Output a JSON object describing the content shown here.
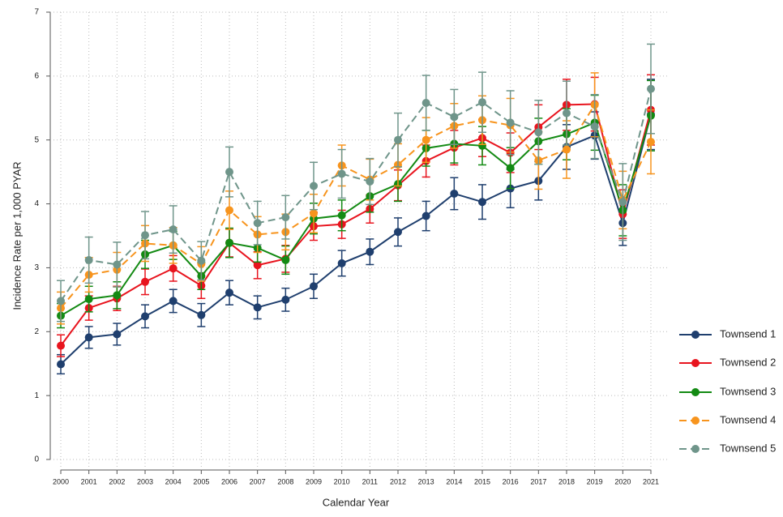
{
  "chart_data": {
    "type": "line",
    "x_label": "Calendar Year",
    "y_label": "Incidence Rate per 1,000 PYAR",
    "categories": [
      "2000",
      "2001",
      "2002",
      "2003",
      "2004",
      "2005",
      "2006",
      "2007",
      "2008",
      "2009",
      "2010",
      "2011",
      "2012",
      "2013",
      "2014",
      "2015",
      "2016",
      "2017",
      "2018",
      "2019",
      "2020",
      "2021"
    ],
    "ylim": [
      0,
      7
    ],
    "yticks": [
      0,
      1,
      2,
      3,
      4,
      5,
      6,
      7
    ],
    "grid": true,
    "legend": "right",
    "series": [
      {
        "name": "Townsend 1",
        "color": "#1f3f6e",
        "line_style": "solid",
        "values": [
          1.49,
          1.91,
          1.96,
          2.24,
          2.48,
          2.26,
          2.61,
          2.38,
          2.5,
          2.71,
          3.07,
          3.25,
          3.56,
          3.81,
          4.16,
          4.03,
          4.24,
          4.36,
          4.89,
          5.07,
          3.7,
          5.4
        ],
        "errors": [
          0.15,
          0.17,
          0.17,
          0.18,
          0.18,
          0.18,
          0.19,
          0.18,
          0.18,
          0.19,
          0.2,
          0.2,
          0.22,
          0.23,
          0.25,
          0.27,
          0.3,
          0.3,
          0.35,
          0.37,
          0.35,
          0.55
        ]
      },
      {
        "name": "Townsend 2",
        "color": "#e8141e",
        "line_style": "solid",
        "values": [
          1.78,
          2.37,
          2.52,
          2.78,
          2.99,
          2.72,
          3.39,
          3.04,
          3.14,
          3.65,
          3.68,
          3.92,
          4.29,
          4.67,
          4.88,
          5.03,
          4.8,
          5.2,
          5.55,
          5.56,
          3.84,
          5.47
        ],
        "errors": [
          0.17,
          0.19,
          0.19,
          0.2,
          0.2,
          0.2,
          0.22,
          0.21,
          0.21,
          0.22,
          0.22,
          0.22,
          0.24,
          0.25,
          0.27,
          0.29,
          0.31,
          0.35,
          0.4,
          0.42,
          0.38,
          0.55
        ]
      },
      {
        "name": "Townsend 3",
        "color": "#138a13",
        "line_style": "solid",
        "values": [
          2.25,
          2.51,
          2.57,
          3.21,
          3.35,
          2.87,
          3.39,
          3.31,
          3.12,
          3.77,
          3.82,
          4.12,
          4.31,
          4.87,
          4.94,
          4.91,
          4.56,
          4.98,
          5.09,
          5.27,
          3.9,
          5.38
        ],
        "errors": [
          0.19,
          0.2,
          0.21,
          0.22,
          0.22,
          0.21,
          0.23,
          0.22,
          0.22,
          0.24,
          0.24,
          0.25,
          0.27,
          0.28,
          0.3,
          0.3,
          0.32,
          0.36,
          0.4,
          0.43,
          0.4,
          0.55
        ]
      },
      {
        "name": "Townsend 4",
        "color": "#f7941d",
        "line_style": "dashed",
        "values": [
          2.37,
          2.89,
          2.97,
          3.38,
          3.35,
          3.06,
          3.9,
          3.52,
          3.56,
          3.85,
          4.6,
          4.38,
          4.61,
          5.0,
          5.22,
          5.31,
          5.23,
          4.68,
          4.85,
          5.55,
          4.06,
          4.97
        ],
        "errors": [
          0.25,
          0.27,
          0.27,
          0.28,
          0.28,
          0.27,
          0.3,
          0.28,
          0.28,
          0.3,
          0.32,
          0.32,
          0.33,
          0.35,
          0.35,
          0.38,
          0.42,
          0.45,
          0.45,
          0.5,
          0.45,
          0.5
        ]
      },
      {
        "name": "Townsend 5",
        "color": "#6f958a",
        "line_style": "dashed",
        "values": [
          2.48,
          3.12,
          3.05,
          3.51,
          3.6,
          3.11,
          4.5,
          3.7,
          3.79,
          4.28,
          4.47,
          4.35,
          5.0,
          5.58,
          5.36,
          5.59,
          5.27,
          5.12,
          5.42,
          5.21,
          4.03,
          5.8
        ],
        "errors": [
          0.32,
          0.36,
          0.35,
          0.37,
          0.37,
          0.3,
          0.39,
          0.34,
          0.34,
          0.37,
          0.38,
          0.36,
          0.42,
          0.43,
          0.43,
          0.47,
          0.5,
          0.5,
          0.5,
          0.5,
          0.6,
          0.7
        ]
      }
    ]
  }
}
